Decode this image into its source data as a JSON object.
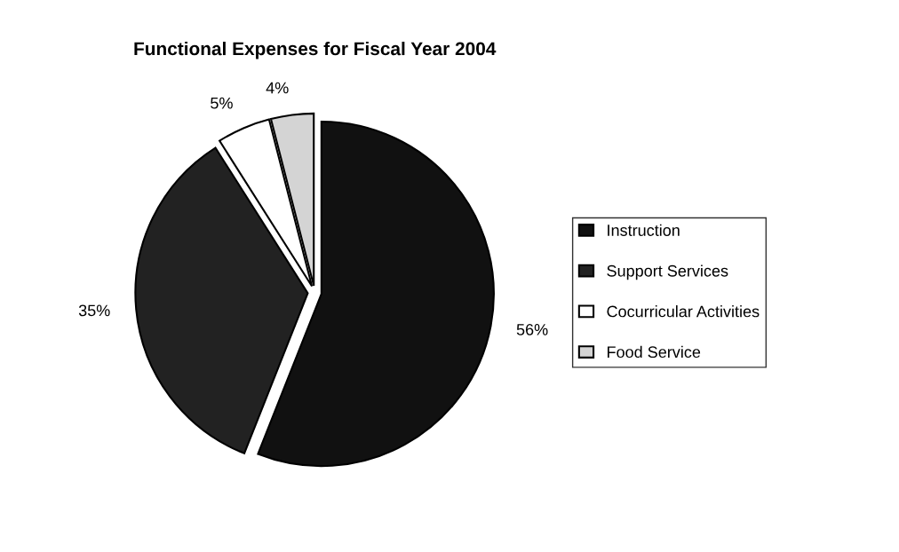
{
  "chart_data": {
    "type": "pie",
    "title": "Functional Expenses for Fiscal Year 2004",
    "categories": [
      "Instruction",
      "Support Services",
      "Cocurricular Activities",
      "Food Service"
    ],
    "values": [
      56,
      35,
      5,
      4
    ],
    "value_labels": [
      "56%",
      "35%",
      "5%",
      "4%"
    ],
    "colors": [
      "#111111",
      "#222222",
      "#ffffff",
      "#d4d4d4"
    ],
    "legend": "right"
  }
}
